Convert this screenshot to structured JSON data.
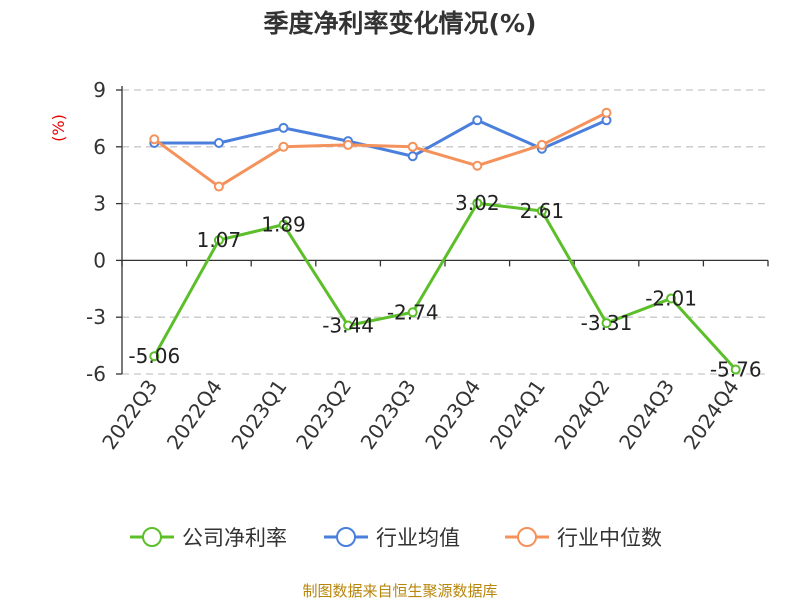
{
  "chart_data": {
    "type": "line",
    "title": "季度净利率变化情况(%)",
    "unit_label": "(%)",
    "categories": [
      "2022Q3",
      "2022Q4",
      "2023Q1",
      "2023Q2",
      "2023Q3",
      "2023Q4",
      "2024Q1",
      "2024Q2",
      "2024Q3",
      "2024Q4"
    ],
    "ylim": [
      -6,
      9
    ],
    "yticks": [
      -6,
      -3,
      0,
      3,
      6,
      9
    ],
    "grid": true,
    "legend_position": "bottom",
    "series": [
      {
        "name": "公司净利率",
        "color": "#5cbf2a",
        "values": [
          -5.06,
          1.07,
          1.89,
          -3.44,
          -2.74,
          3.02,
          2.61,
          -3.31,
          -2.01,
          -5.76
        ],
        "labels": [
          "-5.06",
          "1.07",
          "1.89",
          "-3.44",
          "-2.74",
          "3.02",
          "2.61",
          "-3.31",
          "-2.01",
          "-5.76"
        ]
      },
      {
        "name": "行业均值",
        "color": "#4a7fdc",
        "values": [
          6.2,
          6.2,
          7.0,
          6.3,
          5.5,
          7.4,
          5.9,
          7.4,
          null,
          null
        ]
      },
      {
        "name": "行业中位数",
        "color": "#f5925b",
        "values": [
          6.4,
          3.9,
          6.0,
          6.1,
          6.0,
          5.0,
          6.1,
          7.8,
          null,
          null
        ]
      }
    ]
  },
  "source_text": "制图数据来自恒生聚源数据库"
}
